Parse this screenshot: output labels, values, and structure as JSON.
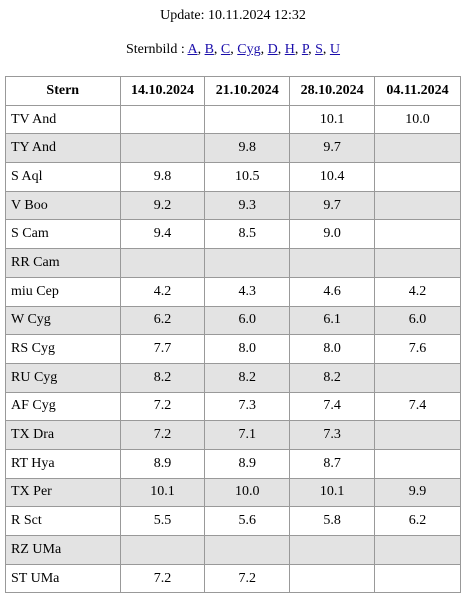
{
  "header": {
    "update": "Update: 10.11.2024 12:32",
    "sternbild_label": "Sternbild :",
    "separator": ",",
    "links": [
      "A",
      "B",
      "C",
      "Cyg",
      "D",
      "H",
      "P",
      "S",
      "U"
    ]
  },
  "table": {
    "columns": [
      "Stern",
      "14.10.2024",
      "21.10.2024",
      "28.10.2024",
      "04.11.2024"
    ],
    "rows": [
      [
        "TV And",
        null,
        null,
        "10.1",
        "10.0"
      ],
      [
        "TY And",
        null,
        "9.8",
        "9.7",
        null
      ],
      [
        "S Aql",
        "9.8",
        "10.5",
        "10.4",
        null
      ],
      [
        "V Boo",
        "9.2",
        "9.3",
        "9.7",
        null
      ],
      [
        "S Cam",
        "9.4",
        "8.5",
        "9.0",
        null
      ],
      [
        "RR Cam",
        null,
        null,
        null,
        null
      ],
      [
        "miu Cep",
        "4.2",
        "4.3",
        "4.6",
        "4.2"
      ],
      [
        "W Cyg",
        "6.2",
        "6.0",
        "6.1",
        "6.0"
      ],
      [
        "RS Cyg",
        "7.7",
        "8.0",
        "8.0",
        "7.6"
      ],
      [
        "RU Cyg",
        "8.2",
        "8.2",
        "8.2",
        null
      ],
      [
        "AF Cyg",
        "7.2",
        "7.3",
        "7.4",
        "7.4"
      ],
      [
        "TX Dra",
        "7.2",
        "7.1",
        "7.3",
        null
      ],
      [
        "RT Hya",
        "8.9",
        "8.9",
        "8.7",
        null
      ],
      [
        "TX Per",
        "10.1",
        "10.0",
        "10.1",
        "9.9"
      ],
      [
        "R Sct",
        "5.5",
        "5.6",
        "5.8",
        "6.2"
      ],
      [
        "RZ UMa",
        null,
        null,
        null,
        null
      ],
      [
        "ST UMa",
        "7.2",
        "7.2",
        null,
        null
      ]
    ]
  }
}
